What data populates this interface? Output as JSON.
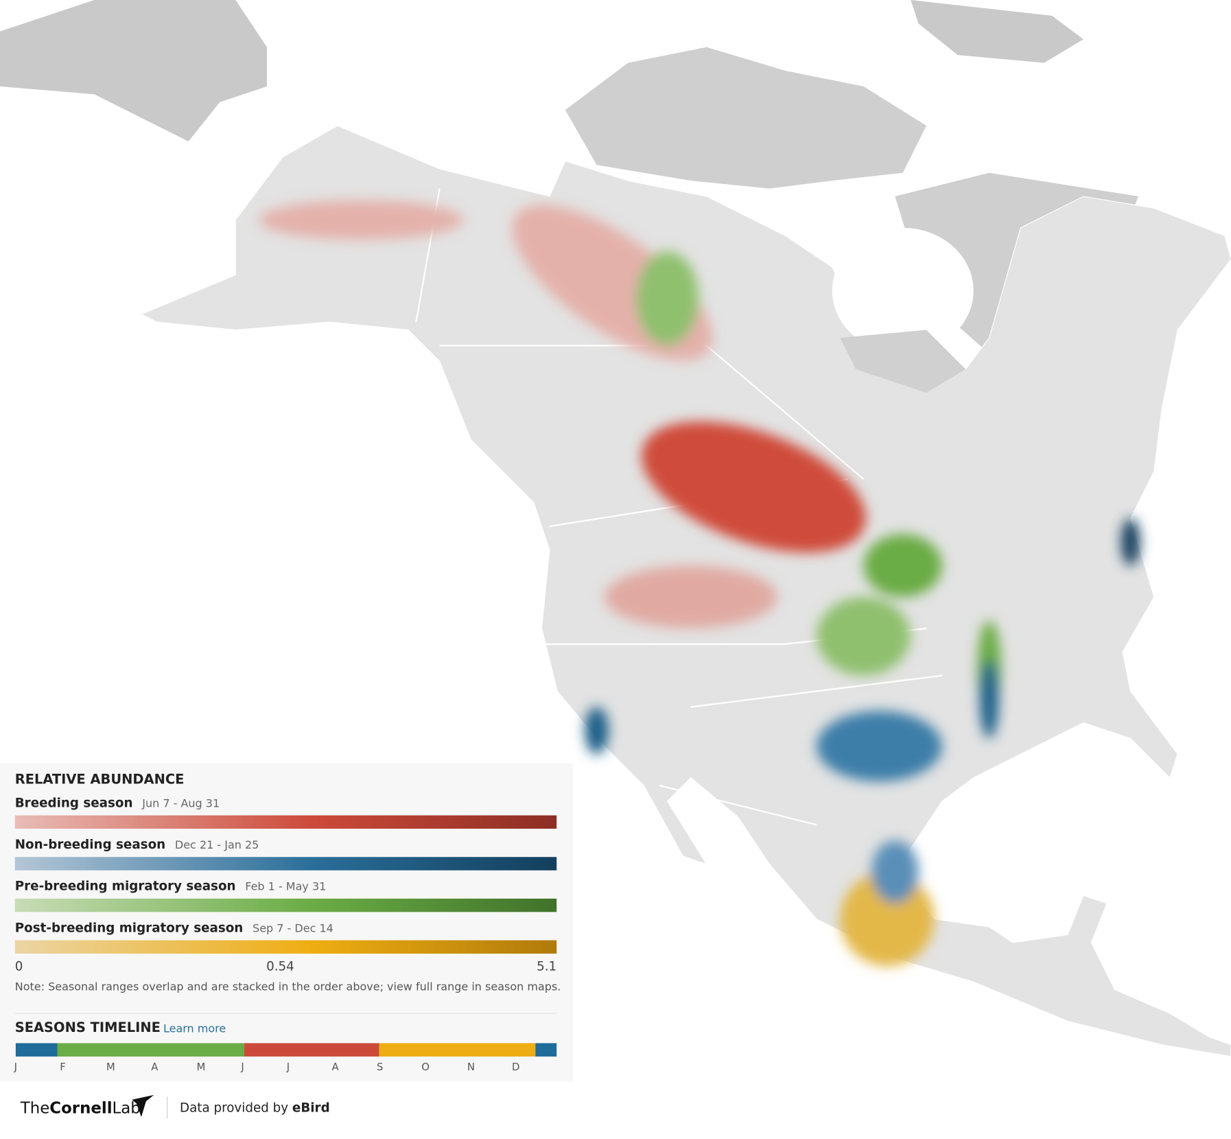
{
  "legend": {
    "title": "RELATIVE ABUNDANCE",
    "seasons": [
      {
        "name": "Breeding season",
        "dates": "Jun 7 - Aug 31"
      },
      {
        "name": "Non-breeding season",
        "dates": "Dec 21 - Jan 25"
      },
      {
        "name": "Pre-breeding migratory season",
        "dates": "Feb 1 - May 31"
      },
      {
        "name": "Post-breeding migratory season",
        "dates": "Sep 7 - Dec 14"
      }
    ],
    "scale_labels": [
      "0",
      "0.54",
      "5.1"
    ],
    "note": "Note: Seasonal ranges overlap and are stacked in the order above; view full range in season maps."
  },
  "timeline": {
    "title": "SEASONS TIMELINE",
    "link": "Learn more",
    "months": [
      "J",
      "F",
      "M",
      "A",
      "M",
      "J",
      "J",
      "A",
      "S",
      "O",
      "N",
      "D"
    ]
  },
  "footer": {
    "logo": [
      "The",
      "Cornell",
      "Lab"
    ],
    "credit": "Data provided by",
    "source": "eBird"
  }
}
